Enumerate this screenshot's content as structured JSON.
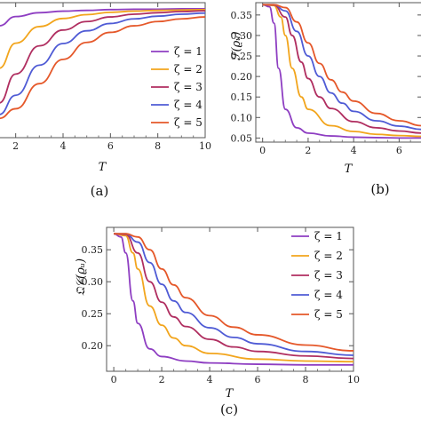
{
  "colors": {
    "zeta1": "#8E3EC2",
    "zeta2": "#F2A51D",
    "zeta3": "#B02E60",
    "zeta4": "#4F5BD5",
    "zeta5": "#E5582A"
  },
  "chart_data": [
    {
      "panel": "a",
      "type": "line",
      "caption": "(a)",
      "xlabel": "T",
      "ylabel": "",
      "xlim": [
        1.3,
        10
      ],
      "ylim": [
        0.04,
        0.39
      ],
      "xticks": [
        2,
        4,
        6,
        8,
        10
      ],
      "xtick_labels": [
        "2",
        "4",
        "6",
        "8",
        "10"
      ],
      "yticks": [],
      "ytick_labels": [],
      "legend_position": "right",
      "series": [
        {
          "name": "ζ = 1",
          "x": [
            1.3,
            2,
            3,
            4,
            5,
            6,
            7,
            8,
            9,
            10
          ],
          "values": [
            0.33,
            0.354,
            0.364,
            0.368,
            0.37,
            0.372,
            0.373,
            0.373,
            0.374,
            0.374
          ]
        },
        {
          "name": "ζ = 2",
          "x": [
            1.3,
            2,
            3,
            4,
            5,
            6,
            7,
            8,
            9,
            10
          ],
          "values": [
            0.22,
            0.285,
            0.328,
            0.349,
            0.359,
            0.365,
            0.368,
            0.37,
            0.371,
            0.372
          ]
        },
        {
          "name": "ζ = 3",
          "x": [
            1.3,
            2,
            3,
            4,
            5,
            6,
            7,
            8,
            9,
            10
          ],
          "values": [
            0.13,
            0.205,
            0.278,
            0.319,
            0.341,
            0.353,
            0.36,
            0.364,
            0.367,
            0.369
          ]
        },
        {
          "name": "ζ = 4",
          "x": [
            1.3,
            2,
            3,
            4,
            5,
            6,
            7,
            8,
            9,
            10
          ],
          "values": [
            0.1,
            0.15,
            0.228,
            0.284,
            0.317,
            0.336,
            0.348,
            0.355,
            0.36,
            0.363
          ]
        },
        {
          "name": "ζ = 5",
          "x": [
            1.3,
            2,
            3,
            4,
            5,
            6,
            7,
            8,
            9,
            10
          ],
          "values": [
            0.09,
            0.115,
            0.18,
            0.243,
            0.287,
            0.313,
            0.33,
            0.341,
            0.348,
            0.353
          ]
        }
      ]
    },
    {
      "panel": "b",
      "type": "line",
      "caption": "(b)",
      "xlabel": "T",
      "ylabel": "ℱ(ϱᵤ)",
      "xlim": [
        -0.3,
        7
      ],
      "ylim": [
        0.04,
        0.38
      ],
      "xticks": [
        0,
        2,
        4,
        6
      ],
      "xtick_labels": [
        "0",
        "2",
        "4",
        "6"
      ],
      "yticks": [
        0.05,
        0.1,
        0.15,
        0.2,
        0.25,
        0.3,
        0.35
      ],
      "ytick_labels": [
        "0.05",
        "0.10",
        "0.15",
        "0.20",
        "0.25",
        "0.30",
        "0.35"
      ],
      "series": [
        {
          "name": "ζ = 1",
          "x": [
            0,
            0.3,
            0.5,
            0.7,
            1.0,
            1.5,
            2,
            3,
            4,
            5,
            6,
            7
          ],
          "values": [
            0.375,
            0.37,
            0.33,
            0.22,
            0.12,
            0.075,
            0.062,
            0.055,
            0.052,
            0.051,
            0.05,
            0.05
          ]
        },
        {
          "name": "ζ = 2",
          "x": [
            0,
            0.5,
            0.8,
            1.0,
            1.3,
            1.7,
            2,
            3,
            4,
            5,
            6,
            7
          ],
          "values": [
            0.375,
            0.373,
            0.345,
            0.3,
            0.22,
            0.15,
            0.12,
            0.08,
            0.066,
            0.059,
            0.056,
            0.054
          ]
        },
        {
          "name": "ζ = 3",
          "x": [
            0,
            0.5,
            1.0,
            1.3,
            1.7,
            2,
            2.5,
            3,
            4,
            5,
            6,
            7
          ],
          "values": [
            0.375,
            0.374,
            0.345,
            0.3,
            0.235,
            0.195,
            0.15,
            0.122,
            0.09,
            0.075,
            0.067,
            0.062
          ]
        },
        {
          "name": "ζ = 4",
          "x": [
            0,
            0.5,
            1.0,
            1.5,
            2,
            2.5,
            3,
            3.5,
            4,
            5,
            6,
            7
          ],
          "values": [
            0.375,
            0.375,
            0.36,
            0.31,
            0.25,
            0.2,
            0.16,
            0.135,
            0.115,
            0.092,
            0.079,
            0.071
          ]
        },
        {
          "name": "ζ = 5",
          "x": [
            0,
            0.5,
            1.0,
            1.5,
            2,
            2.5,
            3,
            3.5,
            4,
            5,
            6,
            7
          ],
          "values": [
            0.375,
            0.375,
            0.368,
            0.333,
            0.282,
            0.232,
            0.192,
            0.162,
            0.14,
            0.11,
            0.092,
            0.08
          ]
        }
      ]
    },
    {
      "panel": "c",
      "type": "line",
      "caption": "(c)",
      "xlabel": "T",
      "ylabel": "𝔔𝒞(ϱᵤ)",
      "xlim": [
        -0.3,
        10
      ],
      "ylim": [
        0.16,
        0.385
      ],
      "xticks": [
        0,
        2,
        4,
        6,
        8,
        10
      ],
      "xtick_labels": [
        "0",
        "2",
        "4",
        "6",
        "8",
        "10"
      ],
      "yticks": [
        0.2,
        0.25,
        0.3,
        0.35
      ],
      "ytick_labels": [
        "0.20",
        "0.25",
        "0.30",
        "0.35"
      ],
      "legend_position": "top-right",
      "series": [
        {
          "name": "ζ = 1",
          "x": [
            0,
            0.3,
            0.5,
            0.8,
            1.0,
            1.5,
            2,
            3,
            4,
            6,
            8,
            10
          ],
          "values": [
            0.375,
            0.37,
            0.345,
            0.27,
            0.235,
            0.195,
            0.183,
            0.176,
            0.173,
            0.171,
            0.17,
            0.17
          ]
        },
        {
          "name": "ζ = 2",
          "x": [
            0,
            0.5,
            0.8,
            1.0,
            1.5,
            2,
            2.5,
            3,
            4,
            6,
            8,
            10
          ],
          "values": [
            0.375,
            0.372,
            0.345,
            0.32,
            0.262,
            0.232,
            0.212,
            0.2,
            0.188,
            0.179,
            0.176,
            0.175
          ]
        },
        {
          "name": "ζ = 3",
          "x": [
            0,
            0.5,
            1.0,
            1.5,
            2,
            2.5,
            3,
            4,
            5,
            6,
            8,
            10
          ],
          "values": [
            0.375,
            0.374,
            0.345,
            0.3,
            0.268,
            0.245,
            0.23,
            0.21,
            0.198,
            0.191,
            0.184,
            0.18
          ]
        },
        {
          "name": "ζ = 4",
          "x": [
            0,
            0.5,
            1.0,
            1.5,
            2,
            2.5,
            3,
            4,
            5,
            6,
            8,
            10
          ],
          "values": [
            0.375,
            0.375,
            0.362,
            0.33,
            0.296,
            0.27,
            0.252,
            0.228,
            0.213,
            0.203,
            0.191,
            0.185
          ]
        },
        {
          "name": "ζ = 5",
          "x": [
            0,
            0.5,
            1.0,
            1.5,
            2,
            2.5,
            3,
            4,
            5,
            6,
            8,
            10
          ],
          "values": [
            0.375,
            0.375,
            0.37,
            0.35,
            0.32,
            0.295,
            0.275,
            0.247,
            0.229,
            0.217,
            0.201,
            0.192
          ]
        }
      ]
    }
  ]
}
